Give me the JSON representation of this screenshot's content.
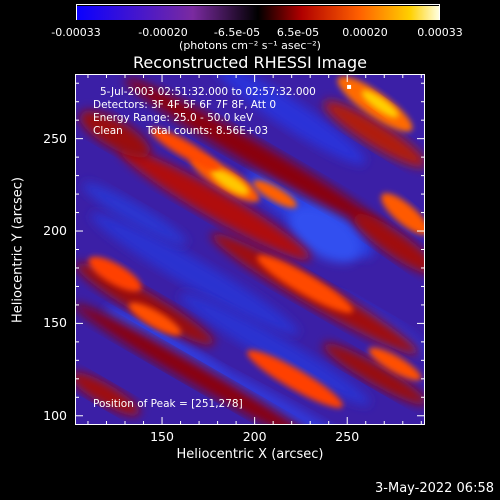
{
  "chart_data": {
    "type": "heatmap",
    "title": "Reconstructed RHESSI Image",
    "xlabel": "Heliocentric X (arcsec)",
    "ylabel": "Heliocentric Y (arcsec)",
    "xlim": [
      103,
      292
    ],
    "ylim": [
      95,
      285
    ],
    "x_ticks": [
      "150",
      "200",
      "250"
    ],
    "y_ticks": [
      "100",
      "150",
      "200",
      "250"
    ],
    "colorbar": {
      "units": "(photons cm⁻² s⁻¹ asec⁻²)",
      "range": [
        -0.00033,
        0.00033
      ],
      "tick_labels": [
        "-0.00033",
        "-0.00020",
        "-6.5e-05",
        "6.5e-05",
        "0.00020",
        "0.00033"
      ]
    },
    "annotations": [
      "5-Jul-2003 02:51:32.000 to 02:57:32.000",
      "Detectors: 3F 4F 5F 6F 7F 8F, Att 0",
      "Energy Range: 25.0 - 50.0 keV",
      "Clean",
      "Total counts: 8.56E+03",
      "Position of Peak = [251,278]"
    ]
  },
  "timestamp": "3-May-2022 06:58"
}
